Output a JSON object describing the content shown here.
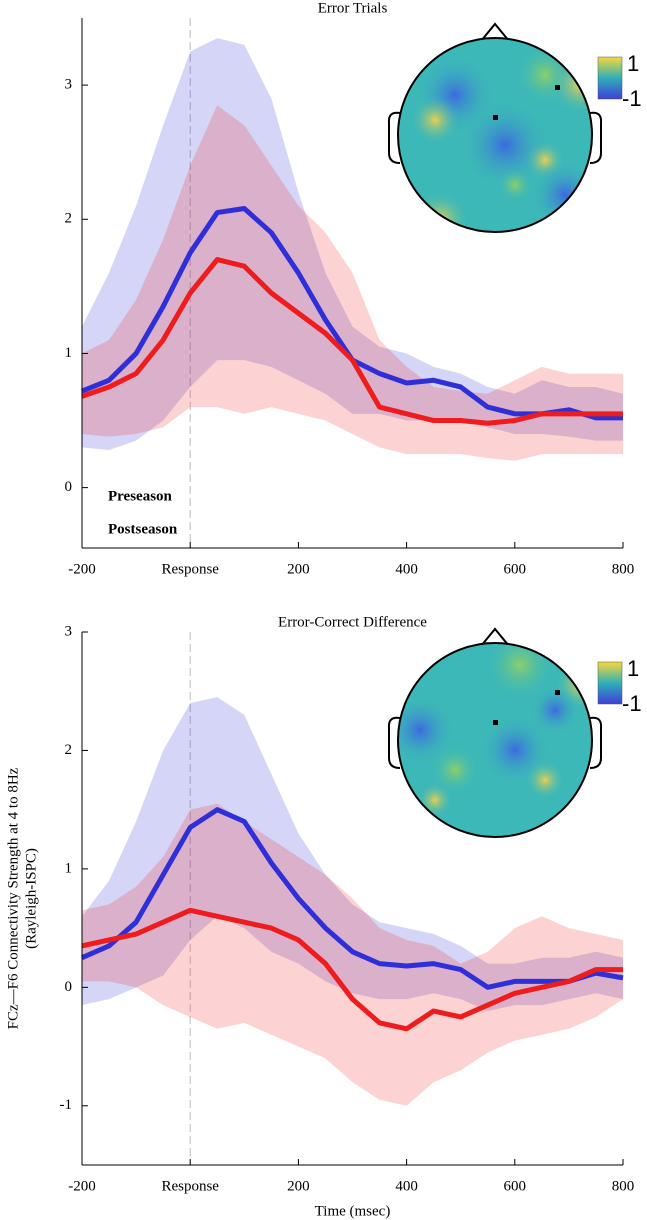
{
  "chart_data": [
    {
      "type": "line",
      "title": "Error Trials",
      "x": [
        -200,
        -150,
        -100,
        -50,
        0,
        50,
        100,
        150,
        200,
        250,
        300,
        350,
        400,
        450,
        500,
        550,
        600,
        650,
        700,
        750,
        800
      ],
      "series": [
        {
          "name": "Preseason",
          "color": "#2f2fd8",
          "values": [
            0.72,
            0.8,
            1.0,
            1.35,
            1.75,
            2.05,
            2.08,
            1.9,
            1.6,
            1.25,
            0.95,
            0.85,
            0.78,
            0.8,
            0.75,
            0.6,
            0.55,
            0.55,
            0.58,
            0.52,
            0.52
          ],
          "upper": [
            1.2,
            1.6,
            2.1,
            2.7,
            3.25,
            3.35,
            3.3,
            2.9,
            2.2,
            1.6,
            1.2,
            1.05,
            1.0,
            0.9,
            0.85,
            0.75,
            0.7,
            0.8,
            0.75,
            0.75,
            0.7
          ],
          "lower": [
            0.3,
            0.28,
            0.35,
            0.5,
            0.75,
            0.95,
            0.95,
            0.9,
            0.8,
            0.7,
            0.55,
            0.55,
            0.5,
            0.5,
            0.5,
            0.45,
            0.4,
            0.4,
            0.38,
            0.35,
            0.35
          ]
        },
        {
          "name": "Postseason",
          "color": "#ee1c1c",
          "values": [
            0.68,
            0.75,
            0.85,
            1.1,
            1.45,
            1.7,
            1.65,
            1.45,
            1.3,
            1.15,
            0.95,
            0.6,
            0.55,
            0.5,
            0.5,
            0.48,
            0.5,
            0.55,
            0.55,
            0.55,
            0.55
          ],
          "upper": [
            1.0,
            1.1,
            1.4,
            1.85,
            2.4,
            2.85,
            2.7,
            2.4,
            2.1,
            1.9,
            1.6,
            1.1,
            0.9,
            0.75,
            0.72,
            0.7,
            0.8,
            0.9,
            0.85,
            0.85,
            0.85
          ],
          "lower": [
            0.4,
            0.38,
            0.4,
            0.45,
            0.6,
            0.6,
            0.55,
            0.6,
            0.55,
            0.5,
            0.4,
            0.3,
            0.25,
            0.25,
            0.25,
            0.22,
            0.2,
            0.25,
            0.25,
            0.25,
            0.25
          ]
        }
      ],
      "xlim": [
        -200,
        800
      ],
      "xticks": [
        -200,
        {
          "value": 0,
          "label": "Response"
        },
        200,
        400,
        600,
        800
      ],
      "ylim": [
        -0.45,
        3.5
      ],
      "yticks": [
        0,
        1,
        2,
        3
      ],
      "legend": true,
      "colorbar_labels": [
        "1",
        "-1"
      ]
    },
    {
      "type": "line",
      "title": "Error-Correct Difference",
      "xlabel": "Time (msec)",
      "ylabel": [
        "FCz—F6 Connectivity Strength at 4 to 8Hz",
        "(Rayleigh-ISPC)"
      ],
      "x": [
        -200,
        -150,
        -100,
        -50,
        0,
        50,
        100,
        150,
        200,
        250,
        300,
        350,
        400,
        450,
        500,
        550,
        600,
        650,
        700,
        750,
        800
      ],
      "series": [
        {
          "name": "Preseason",
          "color": "#2f2fd8",
          "values": [
            0.25,
            0.35,
            0.55,
            0.95,
            1.35,
            1.5,
            1.4,
            1.05,
            0.75,
            0.5,
            0.3,
            0.2,
            0.18,
            0.2,
            0.15,
            0.0,
            0.05,
            0.05,
            0.05,
            0.12,
            0.08
          ],
          "upper": [
            0.6,
            0.9,
            1.4,
            2.0,
            2.4,
            2.45,
            2.3,
            1.8,
            1.3,
            0.95,
            0.7,
            0.55,
            0.5,
            0.45,
            0.35,
            0.2,
            0.2,
            0.25,
            0.25,
            0.3,
            0.25
          ],
          "lower": [
            -0.15,
            -0.1,
            0.0,
            0.1,
            0.4,
            0.6,
            0.5,
            0.3,
            0.2,
            0.05,
            -0.05,
            -0.1,
            -0.1,
            -0.05,
            -0.1,
            -0.2,
            -0.15,
            -0.15,
            -0.1,
            -0.05,
            -0.1
          ]
        },
        {
          "name": "Postseason",
          "color": "#ee1c1c",
          "values": [
            0.35,
            0.4,
            0.45,
            0.55,
            0.65,
            0.6,
            0.55,
            0.5,
            0.4,
            0.2,
            -0.1,
            -0.3,
            -0.35,
            -0.2,
            -0.25,
            -0.15,
            -0.05,
            0.0,
            0.05,
            0.15,
            0.15
          ],
          "upper": [
            0.65,
            0.7,
            0.85,
            1.1,
            1.5,
            1.55,
            1.4,
            1.25,
            1.1,
            0.95,
            0.75,
            0.5,
            0.4,
            0.35,
            0.2,
            0.3,
            0.5,
            0.6,
            0.5,
            0.45,
            0.4
          ],
          "lower": [
            0.05,
            0.05,
            0.0,
            -0.15,
            -0.25,
            -0.35,
            -0.3,
            -0.4,
            -0.5,
            -0.6,
            -0.8,
            -0.95,
            -1.0,
            -0.8,
            -0.7,
            -0.55,
            -0.45,
            -0.4,
            -0.35,
            -0.25,
            -0.1
          ]
        }
      ],
      "xlim": [
        -200,
        800
      ],
      "xticks": [
        -200,
        {
          "value": 0,
          "label": "Response"
        },
        200,
        400,
        600,
        800
      ],
      "ylim": [
        -1.5,
        3
      ],
      "yticks": [
        -1,
        0,
        1,
        2,
        3
      ],
      "legend": false,
      "colorbar_labels": [
        "1",
        "-1"
      ]
    }
  ]
}
